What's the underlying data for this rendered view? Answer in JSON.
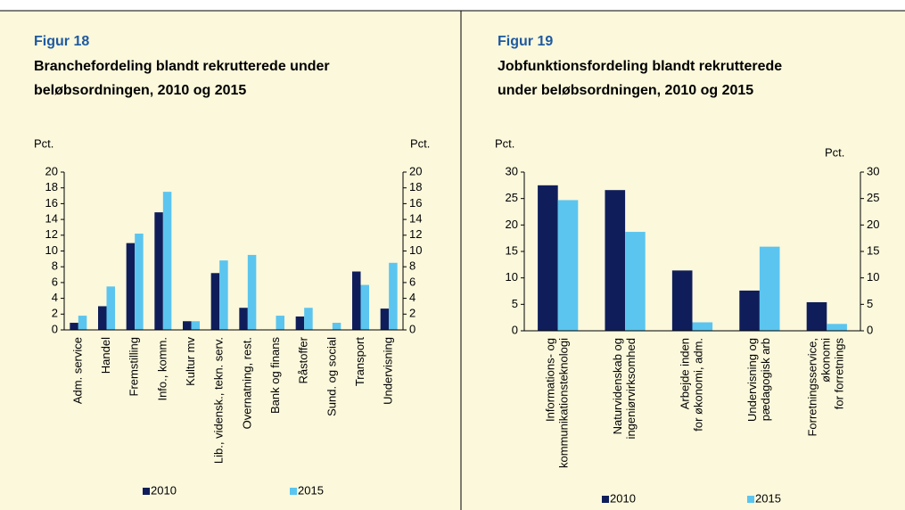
{
  "chart_data": [
    {
      "type": "bar",
      "title": "Figur 18",
      "subtitle": [
        "Branchefordeling blandt rekrutterede under",
        "beløbsordningen, 2010 og 2015"
      ],
      "y_label": "Pct.",
      "y2_label": "Pct.",
      "categories": [
        [
          "Adm. service"
        ],
        [
          "Handel"
        ],
        [
          "Fremstilling"
        ],
        [
          "Info., komm."
        ],
        [
          "Kultur mv"
        ],
        [
          "Lib., vidensk., tekn. serv."
        ],
        [
          "Overnatning, rest."
        ],
        [
          "Bank og finans"
        ],
        [
          "Råstoffer"
        ],
        [
          "Sund. og social"
        ],
        [
          "Transport"
        ],
        [
          "Undervisning"
        ]
      ],
      "series": [
        {
          "name": "2010",
          "color": "#0f1e5a",
          "values": [
            0.9,
            3.0,
            11.0,
            14.9,
            1.1,
            7.2,
            2.8,
            0,
            1.7,
            0,
            7.4,
            2.7
          ]
        },
        {
          "name": "2015",
          "color": "#5bc5ef",
          "values": [
            1.8,
            5.5,
            12.2,
            17.5,
            1.1,
            8.8,
            9.5,
            1.8,
            2.8,
            0.9,
            5.7,
            8.5
          ]
        }
      ],
      "ylim": [
        0,
        20
      ],
      "yticks": [
        0,
        2,
        4,
        6,
        8,
        10,
        12,
        14,
        16,
        18,
        20
      ],
      "y2lim": [
        0,
        20
      ],
      "y2ticks": [
        0,
        2,
        4,
        6,
        8,
        10,
        12,
        14,
        16,
        18,
        20
      ]
    },
    {
      "type": "bar",
      "title": "Figur 19",
      "subtitle": [
        "Jobfunktionsfordeling blandt rekrutterede",
        "under beløbsordningen, 2010 og 2015"
      ],
      "y_label": "Pct.",
      "y2_label": "Pct.",
      "categories": [
        [
          "Informations- og",
          "kommunikationsteknologi"
        ],
        [
          "Naturvidenskab og",
          "ingeniørvirksomhed"
        ],
        [
          "Arbejde inden",
          "for økonomi, adm."
        ],
        [
          "Undervisning og",
          "pædagogisk arb"
        ],
        [
          "Forretningsservice,",
          "økonomi",
          "for forretnings"
        ]
      ],
      "series": [
        {
          "name": "2010",
          "color": "#0f1e5a",
          "values": [
            27.5,
            26.6,
            11.4,
            7.6,
            5.4
          ]
        },
        {
          "name": "2015",
          "color": "#5bc5ef",
          "values": [
            24.7,
            18.7,
            1.6,
            15.9,
            1.3
          ]
        }
      ],
      "ylim": [
        0,
        30
      ],
      "yticks": [
        0,
        5,
        10,
        15,
        20,
        25,
        30
      ],
      "y2lim": [
        0,
        30
      ],
      "y2ticks": [
        0,
        5,
        10,
        15,
        20,
        25,
        30
      ]
    }
  ]
}
